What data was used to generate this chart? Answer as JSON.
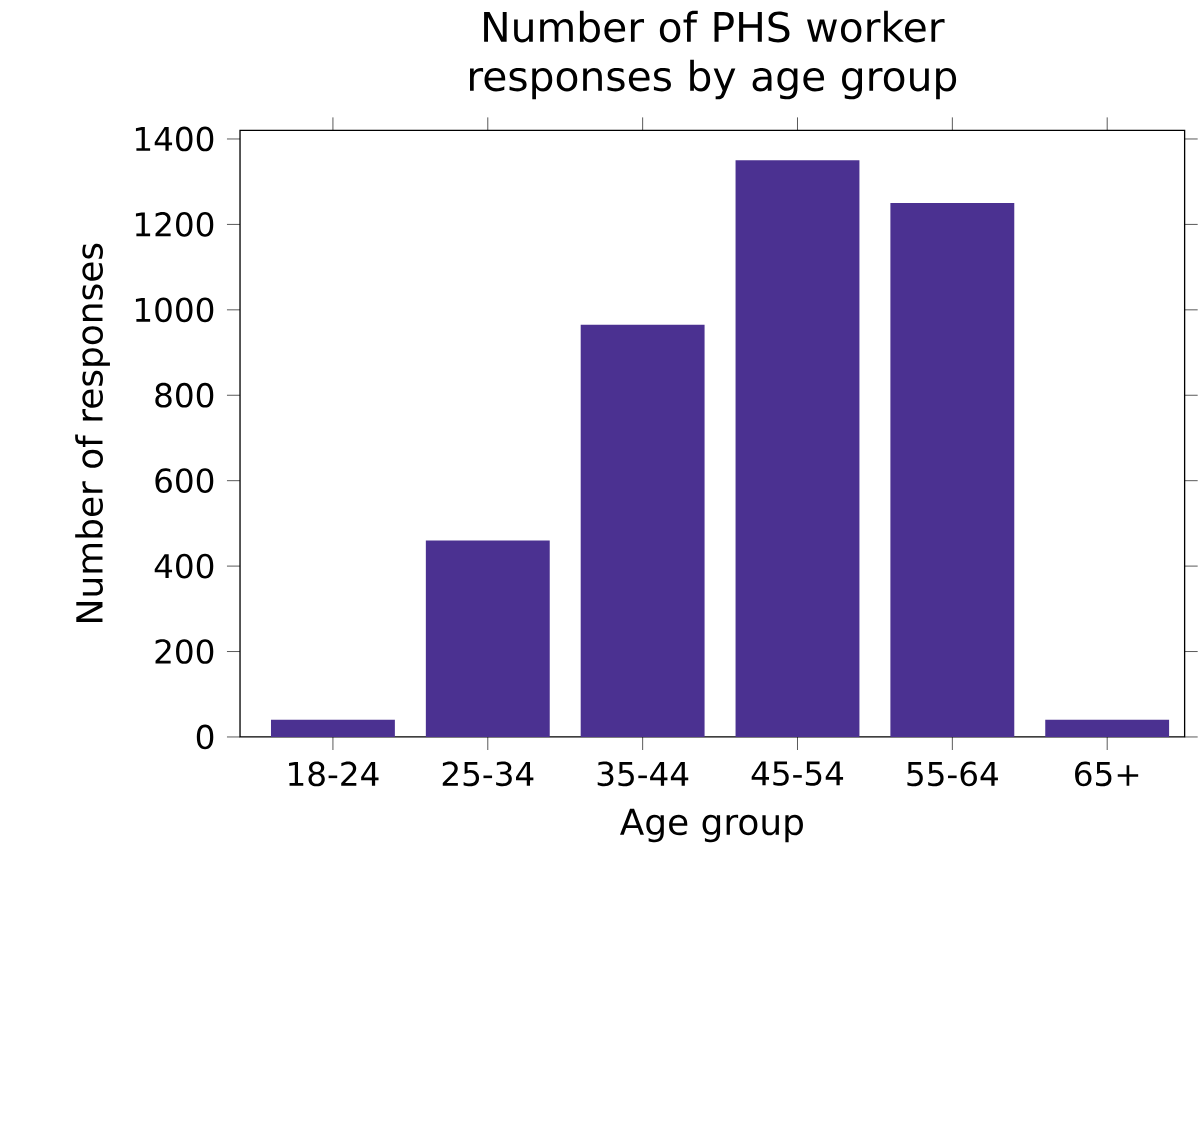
{
  "chart_data": {
    "type": "bar",
    "title": "Number of PHS worker responses by age group",
    "xlabel": "Age group",
    "ylabel": "Number of responses",
    "categories": [
      "18-24",
      "25-34",
      "35-44",
      "45-54",
      "55-64",
      "65+"
    ],
    "values": [
      40,
      460,
      965,
      1350,
      1250,
      40
    ],
    "color": "#4b3191",
    "ylim": [
      0,
      1420
    ],
    "yticks": [
      0,
      200,
      400,
      600,
      800,
      1000,
      1200,
      1400
    ]
  }
}
